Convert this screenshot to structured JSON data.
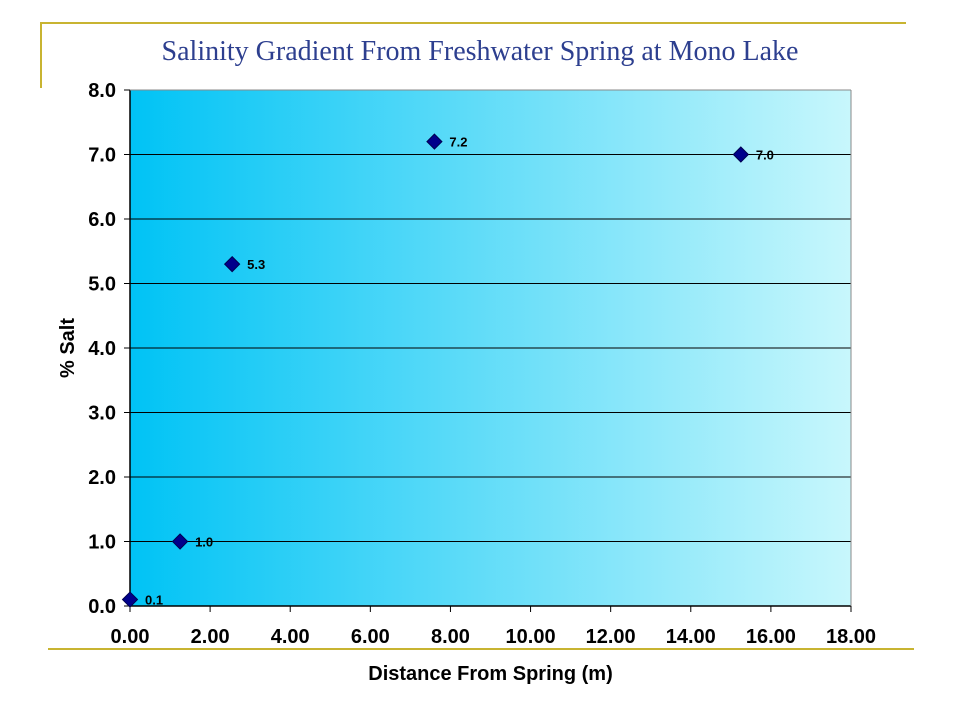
{
  "chart_data": {
    "type": "scatter",
    "title": "Salinity Gradient From Freshwater Spring at Mono Lake",
    "xlabel": "Distance From Spring (m)",
    "ylabel": "% Salt",
    "xlim": [
      0,
      18
    ],
    "ylim": [
      0,
      8
    ],
    "x_ticks": [
      "0.00",
      "2.00",
      "4.00",
      "6.00",
      "8.00",
      "10.00",
      "12.00",
      "14.00",
      "16.00",
      "18.00"
    ],
    "y_ticks": [
      "0.0",
      "1.0",
      "2.0",
      "3.0",
      "4.0",
      "5.0",
      "6.0",
      "7.0",
      "8.0"
    ],
    "grid": "horizontal",
    "series": [
      {
        "marker": "diamond",
        "color": "#00008b",
        "x": [
          0.0,
          1.25,
          2.55,
          7.6,
          15.25
        ],
        "y": [
          0.1,
          1.0,
          5.3,
          7.2,
          7.0
        ],
        "labels": [
          "0.1",
          "1.0",
          "5.3",
          "7.2",
          "7.0"
        ]
      }
    ],
    "colors": {
      "plot_gradient_start": "#00c3f5",
      "plot_gradient_end": "#c8f7fc",
      "title": "#2d3f8f",
      "frame_accent": "#c8b431"
    }
  }
}
